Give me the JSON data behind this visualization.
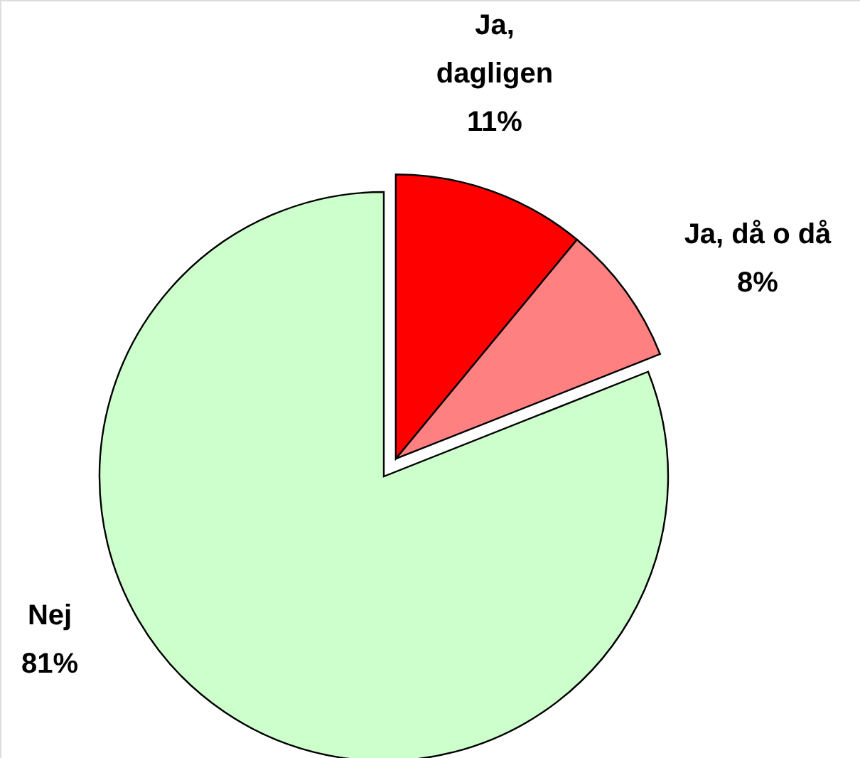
{
  "chart_data": {
    "type": "pie",
    "categories": [
      "Ja, dagligen",
      "Ja, då o då",
      "Nej"
    ],
    "values": [
      11,
      8,
      81
    ],
    "value_labels": [
      "11%",
      "8%",
      "81%"
    ],
    "colors": [
      "#ff0000",
      "#ff8080",
      "#ccffcc"
    ]
  }
}
